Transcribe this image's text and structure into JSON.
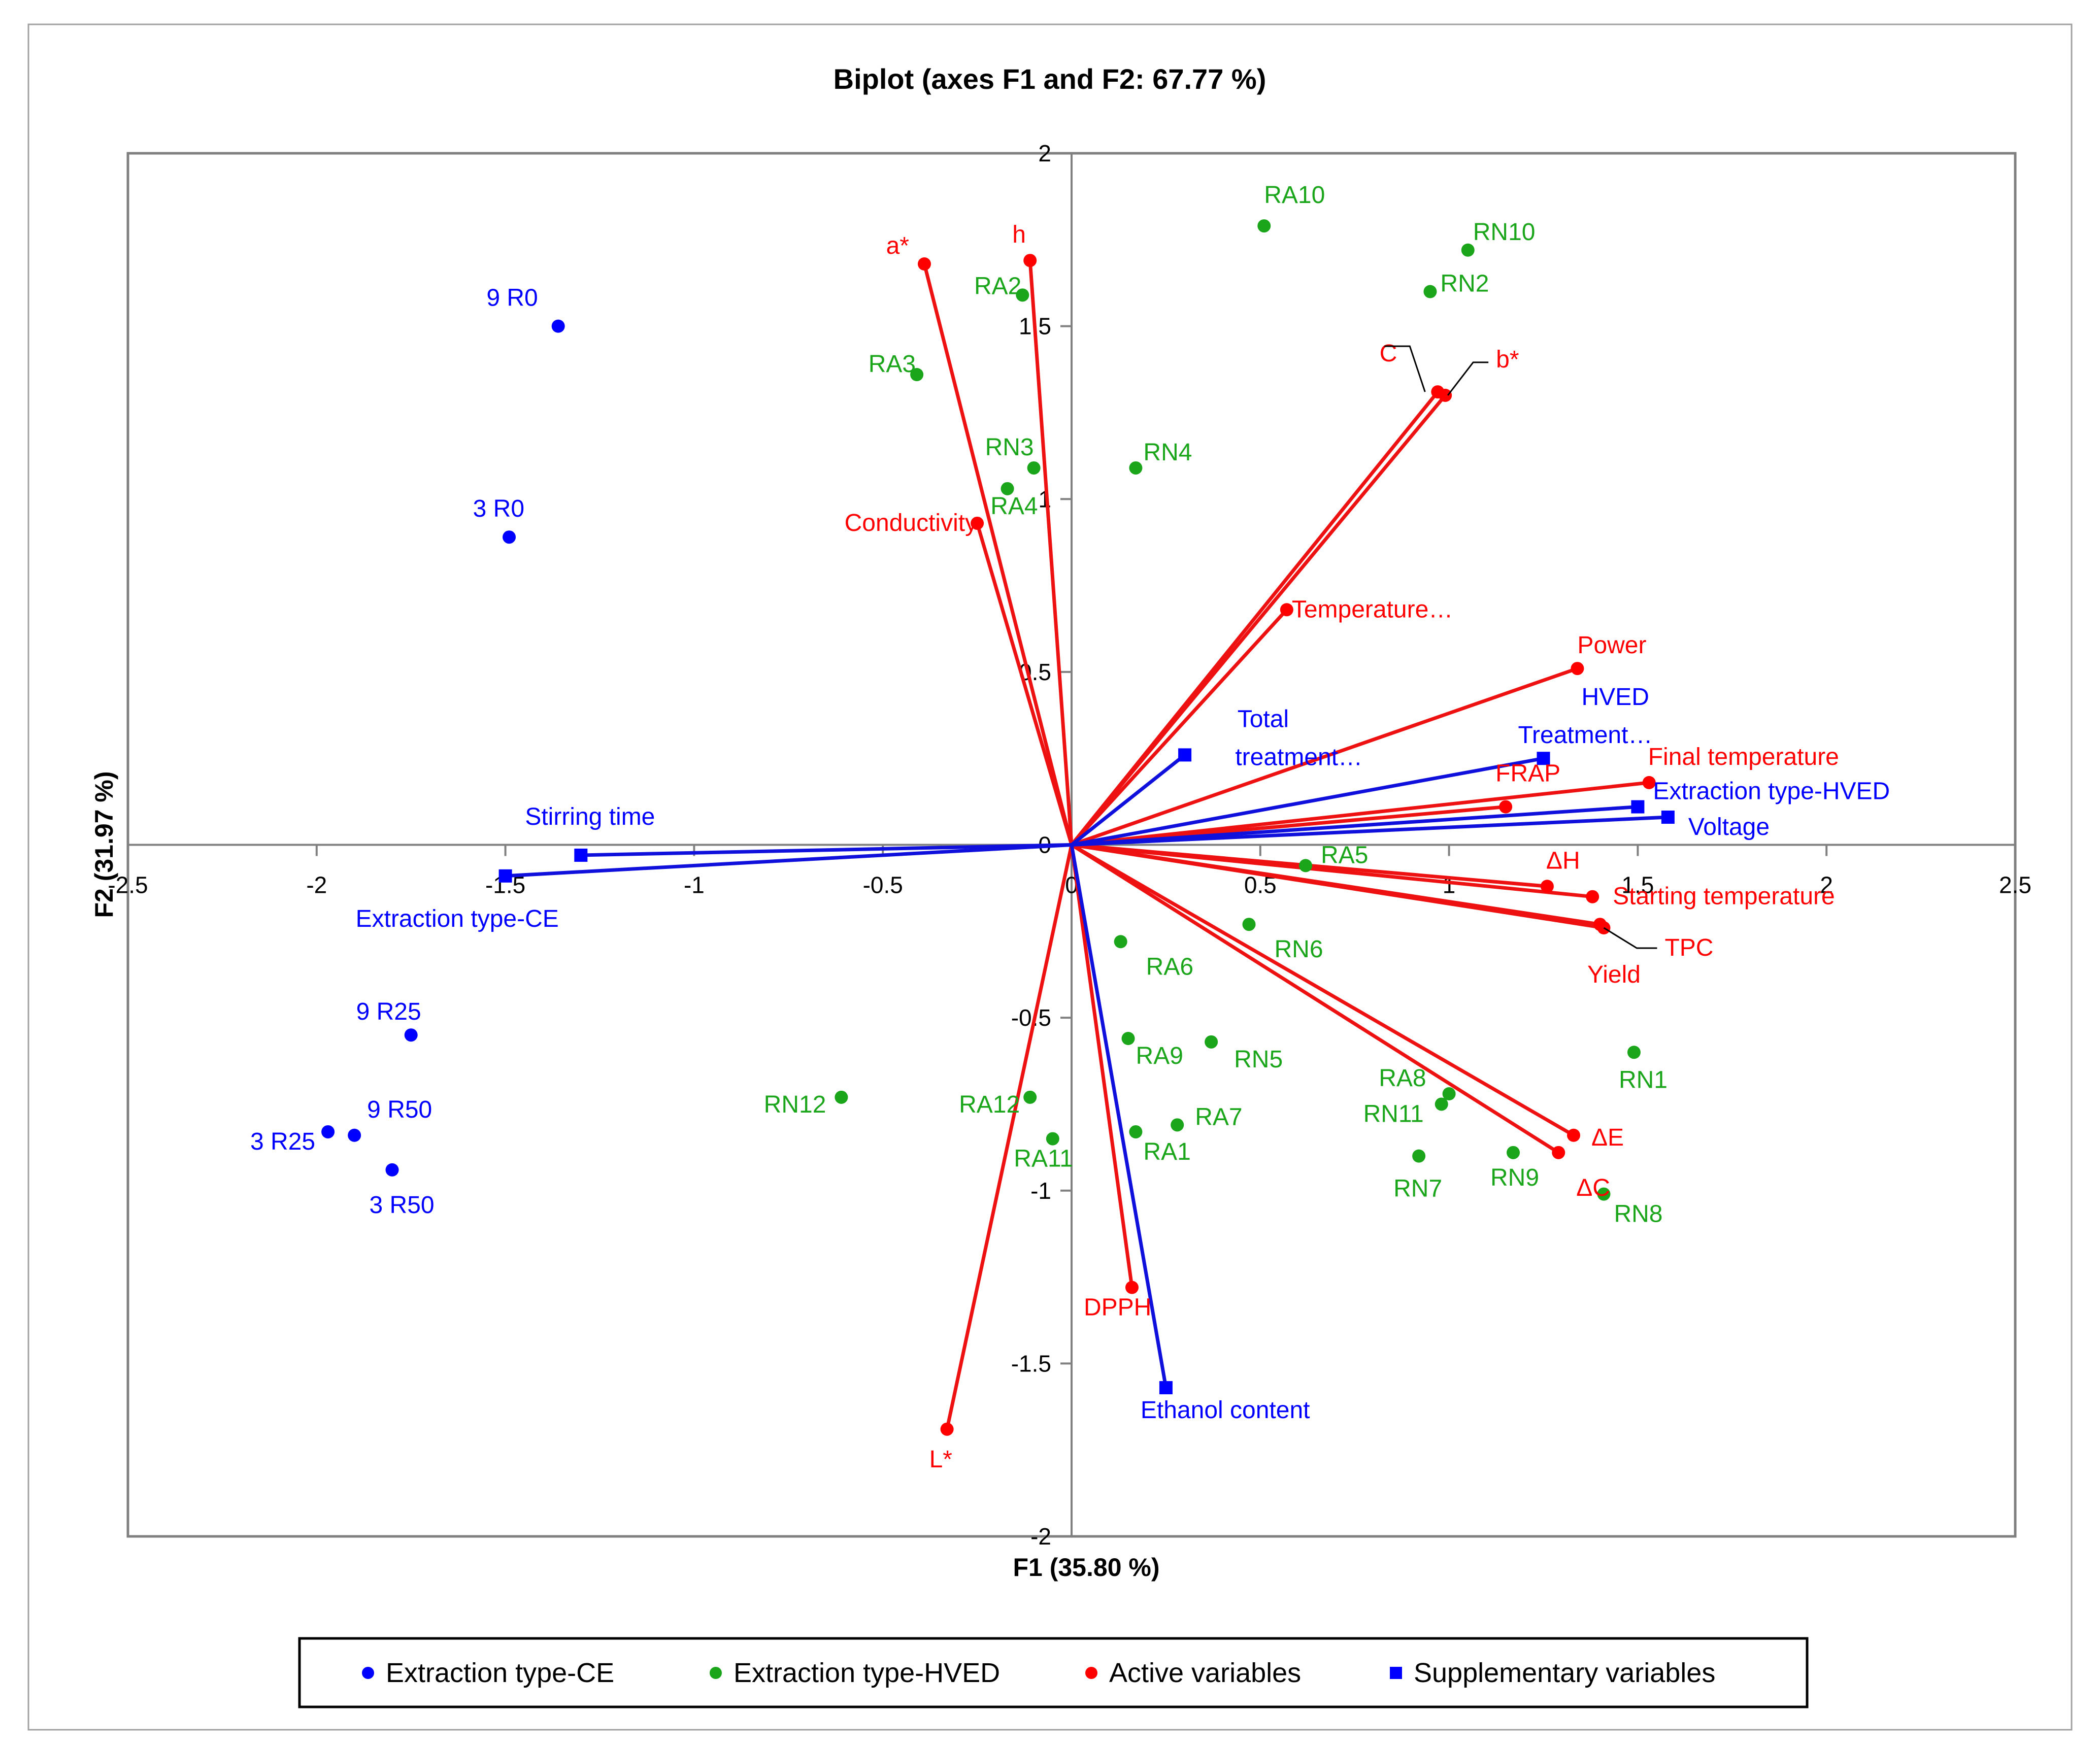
{
  "chart_data": {
    "type": "scatter",
    "subtype": "biplot",
    "title": "Biplot (axes F1 and F2: 67.77 %)",
    "xlabel": "F1 (35.80 %)",
    "ylabel": "F2 (31.97 %)",
    "xlim": [
      -2.5,
      2.5
    ],
    "ylim": [
      -2,
      2
    ],
    "xticks": [
      -2.5,
      -2,
      -1.5,
      -1,
      -0.5,
      0,
      0.5,
      1,
      1.5,
      2,
      2.5
    ],
    "yticks": [
      -2,
      -1.5,
      -1,
      -0.5,
      0,
      0.5,
      1,
      1.5,
      2
    ],
    "xtick_labels": [
      "-2.5",
      "-2",
      "-1.5",
      "-1",
      "-0.5",
      "0",
      "0.5",
      "1",
      "1.5",
      "2",
      "2.5"
    ],
    "ytick_labels": [
      "-2",
      "-1.5",
      "-1",
      "-0.5",
      "0",
      "0.5",
      "1",
      "1.5",
      "2"
    ],
    "grid": false,
    "legend_position": "bottom",
    "colors": {
      "ce": "#0000ff",
      "hved": "#1aa51a",
      "active": "#ff0000",
      "supp": "#0000ff",
      "active_line": "#ee1111",
      "supp_line": "#1010dd",
      "axis": "#808080",
      "frame": "#808080"
    },
    "series": [
      {
        "name": "Extraction type-CE",
        "marker": "circle",
        "color": "#0000ff",
        "points": [
          {
            "label": "9 R0",
            "x": -1.36,
            "y": 1.5
          },
          {
            "label": "3 R0",
            "x": -1.49,
            "y": 0.89
          },
          {
            "label": "9 R25",
            "x": -1.75,
            "y": -0.55
          },
          {
            "label": "3 R25",
            "x": -1.97,
            "y": -0.83
          },
          {
            "label": "9 R50",
            "x": -1.9,
            "y": -0.84
          },
          {
            "label": "3 R50",
            "x": -1.8,
            "y": -0.94
          }
        ]
      },
      {
        "name": "Extraction type-HVED",
        "marker": "circle",
        "color": "#1aa51a",
        "points": [
          {
            "label": "RA10",
            "x": 0.51,
            "y": 1.79
          },
          {
            "label": "RN10",
            "x": 1.05,
            "y": 1.72
          },
          {
            "label": "RN2",
            "x": 0.95,
            "y": 1.6
          },
          {
            "label": "RA2",
            "x": -0.13,
            "y": 1.59
          },
          {
            "label": "RA3",
            "x": -0.41,
            "y": 1.36
          },
          {
            "label": "RN3",
            "x": -0.1,
            "y": 1.09
          },
          {
            "label": "RN4",
            "x": 0.17,
            "y": 1.09
          },
          {
            "label": "RA4",
            "x": -0.17,
            "y": 1.03
          },
          {
            "label": "RA5",
            "x": 0.62,
            "y": -0.06
          },
          {
            "label": "RN6",
            "x": 0.47,
            "y": -0.23
          },
          {
            "label": "RA6",
            "x": 0.13,
            "y": -0.28
          },
          {
            "label": "RA9",
            "x": 0.15,
            "y": -0.56
          },
          {
            "label": "RN5",
            "x": 0.37,
            "y": -0.57
          },
          {
            "label": "RN1",
            "x": 1.49,
            "y": -0.6
          },
          {
            "label": "RN12",
            "x": -0.61,
            "y": -0.73
          },
          {
            "label": "RA12",
            "x": -0.11,
            "y": -0.73
          },
          {
            "label": "RA8",
            "x": 1.0,
            "y": -0.72
          },
          {
            "label": "RN11",
            "x": 0.98,
            "y": -0.75
          },
          {
            "label": "RA7",
            "x": 0.28,
            "y": -0.81
          },
          {
            "label": "RA1",
            "x": 0.17,
            "y": -0.83
          },
          {
            "label": "RA11",
            "x": -0.05,
            "y": -0.85
          },
          {
            "label": "RN9",
            "x": 1.17,
            "y": -0.89
          },
          {
            "label": "RN7",
            "x": 0.92,
            "y": -0.9
          },
          {
            "label": "RN8",
            "x": 1.41,
            "y": -1.01
          }
        ]
      },
      {
        "name": "Active variables",
        "marker": "circle",
        "color": "#ff0000",
        "vectors": true,
        "points": [
          {
            "label": "a*",
            "x": -0.39,
            "y": 1.68
          },
          {
            "label": "h",
            "x": -0.11,
            "y": 1.69
          },
          {
            "label": "C",
            "x": 0.97,
            "y": 1.31
          },
          {
            "label": "b*",
            "x": 0.99,
            "y": 1.3
          },
          {
            "label": "Conductivity",
            "x": -0.25,
            "y": 0.93
          },
          {
            "label": "Temperature…",
            "x": 0.57,
            "y": 0.68
          },
          {
            "label": "Power",
            "x": 1.34,
            "y": 0.51
          },
          {
            "label": "Final temperature",
            "x": 1.53,
            "y": 0.18
          },
          {
            "label": "FRAP",
            "x": 1.15,
            "y": 0.11
          },
          {
            "label": "ΔH",
            "x": 1.26,
            "y": -0.12
          },
          {
            "label": "Starting temperature",
            "x": 1.38,
            "y": -0.15
          },
          {
            "label": "TPC",
            "x": 1.41,
            "y": -0.24
          },
          {
            "label": "Yield",
            "x": 1.4,
            "y": -0.23
          },
          {
            "label": "ΔE",
            "x": 1.33,
            "y": -0.84
          },
          {
            "label": "ΔC",
            "x": 1.29,
            "y": -0.89
          },
          {
            "label": "DPPH",
            "x": 0.16,
            "y": -1.28
          },
          {
            "label": "L*",
            "x": -0.33,
            "y": -1.69
          }
        ]
      },
      {
        "name": "Supplementary variables",
        "marker": "square",
        "color": "#0000ff",
        "vectors": true,
        "points": [
          {
            "label": "Total treatment…",
            "x": 0.3,
            "y": 0.26
          },
          {
            "label": "HVED Treatment…",
            "x": 1.25,
            "y": 0.25
          },
          {
            "label": "Extraction type-HVED",
            "x": 1.5,
            "y": 0.11
          },
          {
            "label": "Voltage",
            "x": 1.58,
            "y": 0.08
          },
          {
            "label": "Stirring time",
            "x": -1.3,
            "y": -0.03
          },
          {
            "label": "Extraction type-CE",
            "x": -1.5,
            "y": -0.09
          },
          {
            "label": "Ethanol content",
            "x": 0.25,
            "y": -1.57
          }
        ]
      }
    ]
  }
}
